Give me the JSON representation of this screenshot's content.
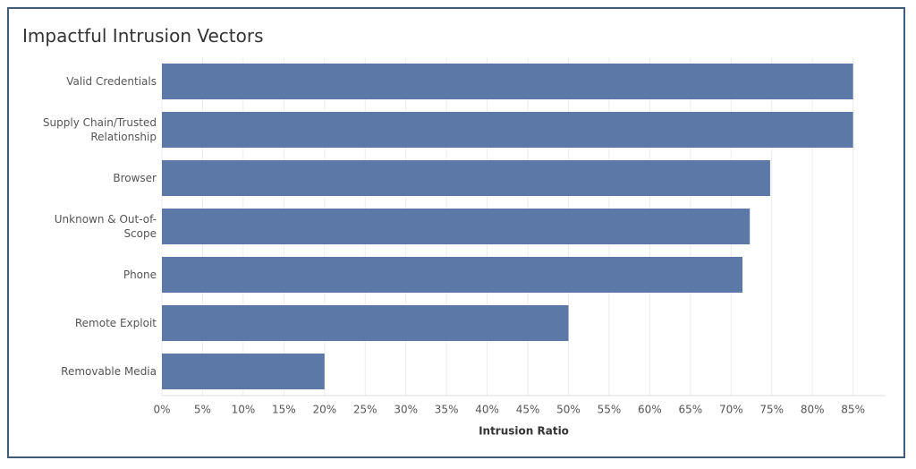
{
  "chart_data": {
    "type": "bar",
    "orientation": "horizontal",
    "title": "Impactful Intrusion Vectors",
    "categories": [
      "Valid Credentials",
      "Supply Chain/Trusted Relationship",
      "Browser",
      "Unknown & Out-of-Scope",
      "Phone",
      "Remote Exploit",
      "Removable Media"
    ],
    "values": [
      85,
      85,
      74.8,
      72.3,
      71.4,
      50,
      20
    ],
    "color": "#5b78a6",
    "x_label": "Intrusion Ratio",
    "xlim": [
      0,
      89
    ],
    "xticks": [
      {
        "value": 0,
        "label": "0%"
      },
      {
        "value": 5,
        "label": "5%"
      },
      {
        "value": 10,
        "label": "10%"
      },
      {
        "value": 15,
        "label": "15%"
      },
      {
        "value": 20,
        "label": "20%"
      },
      {
        "value": 25,
        "label": "25%"
      },
      {
        "value": 30,
        "label": "30%"
      },
      {
        "value": 35,
        "label": "35%"
      },
      {
        "value": 40,
        "label": "40%"
      },
      {
        "value": 45,
        "label": "45%"
      },
      {
        "value": 50,
        "label": "50%"
      },
      {
        "value": 55,
        "label": "55%"
      },
      {
        "value": 60,
        "label": "60%"
      },
      {
        "value": 65,
        "label": "65%"
      },
      {
        "value": 70,
        "label": "70%"
      },
      {
        "value": 75,
        "label": "75%"
      },
      {
        "value": 80,
        "label": "80%"
      },
      {
        "value": 85,
        "label": "85%"
      }
    ],
    "grid": true
  }
}
